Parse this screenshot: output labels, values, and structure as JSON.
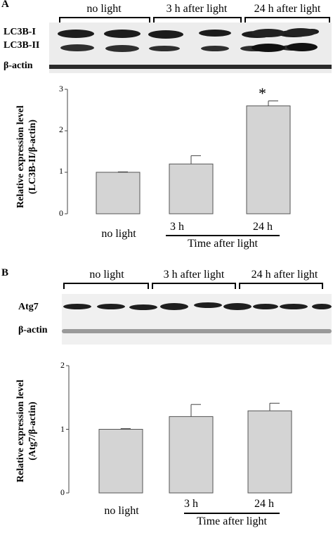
{
  "panels": [
    {
      "label": "A",
      "blot": {
        "groups": [
          "no light",
          "3 h after light",
          "24 h after light"
        ],
        "bands": [
          "LC3B-I",
          "LC3B-II",
          "β-actin"
        ]
      },
      "ylabel_line1": "Relative expression level",
      "ylabel_line2": "(LC3B-II/β-actin)",
      "yticks": [
        "0",
        "1",
        "2",
        "3"
      ],
      "xlabels": [
        "no light",
        "3 h",
        "24 h"
      ],
      "xgroup_label": "Time after light",
      "significance": "*"
    },
    {
      "label": "B",
      "blot": {
        "groups": [
          "no light",
          "3 h after light",
          "24 h after light"
        ],
        "bands": [
          "Atg7",
          "β-actin"
        ]
      },
      "ylabel_line1": "Relative expression level",
      "ylabel_line2": "(Atg7/β-actin)",
      "yticks": [
        "0",
        "1",
        "2"
      ],
      "xlabels": [
        "no light",
        "3 h",
        "24 h"
      ],
      "xgroup_label": "Time after light"
    }
  ],
  "chart_data": [
    {
      "type": "bar",
      "categories": [
        "no light",
        "3 h",
        "24 h"
      ],
      "values": [
        1.0,
        1.2,
        2.6
      ],
      "errors": [
        0.01,
        0.2,
        0.12
      ],
      "ylim": [
        0,
        3
      ],
      "ylabel": "Relative expression level (LC3B-II/β-actin)",
      "xlabel": "Time after light",
      "annotations": [
        {
          "category": "24 h",
          "text": "*"
        }
      ],
      "colors": {
        "bar": "#d4d4d4",
        "edge": "#555555"
      }
    },
    {
      "type": "bar",
      "categories": [
        "no light",
        "3 h",
        "24 h"
      ],
      "values": [
        1.0,
        1.2,
        1.29
      ],
      "errors": [
        0.01,
        0.19,
        0.12
      ],
      "ylim": [
        0,
        2
      ],
      "ylabel": "Relative expression level (Atg7/β-actin)",
      "xlabel": "Time after light",
      "colors": {
        "bar": "#d4d4d4",
        "edge": "#555555"
      }
    }
  ]
}
